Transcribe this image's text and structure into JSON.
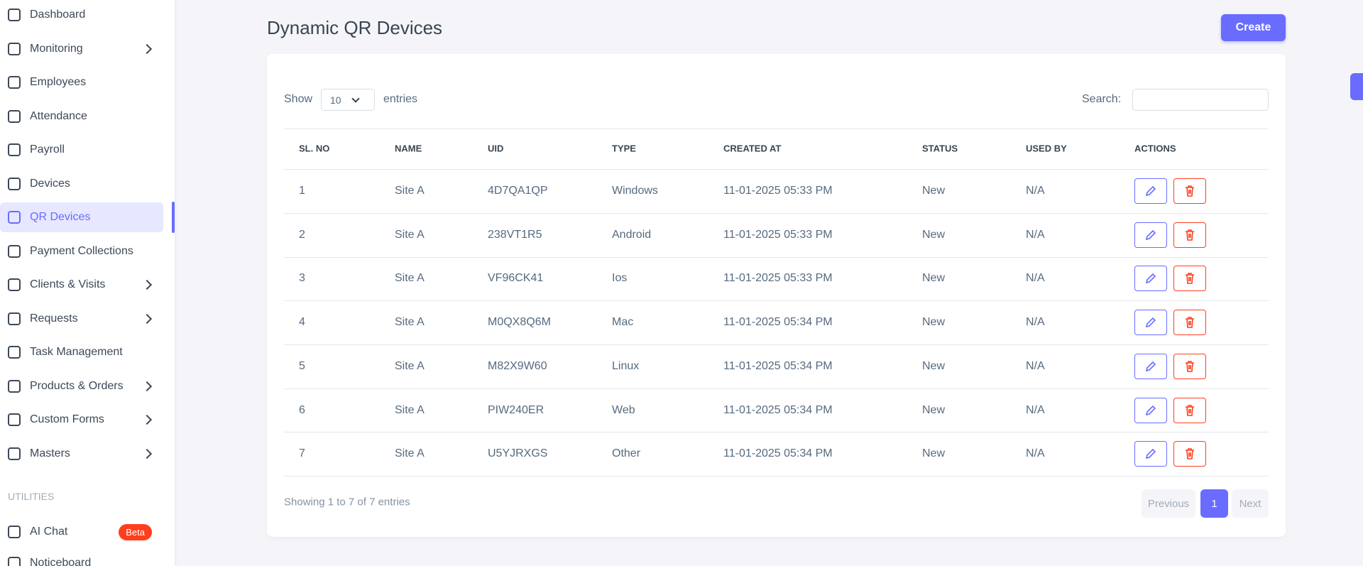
{
  "sidebar": {
    "items": [
      {
        "label": "Dashboard"
      },
      {
        "label": "Monitoring",
        "expandable": true
      },
      {
        "label": "Employees"
      },
      {
        "label": "Attendance"
      },
      {
        "label": "Payroll"
      },
      {
        "label": "Devices"
      },
      {
        "label": "QR Devices",
        "active": true
      },
      {
        "label": "Payment Collections"
      },
      {
        "label": "Clients & Visits",
        "expandable": true
      },
      {
        "label": "Requests",
        "expandable": true
      },
      {
        "label": "Task Management"
      },
      {
        "label": "Products & Orders",
        "expandable": true
      },
      {
        "label": "Custom Forms",
        "expandable": true
      },
      {
        "label": "Masters",
        "expandable": true
      }
    ],
    "section": "UTILITIES",
    "utility_items": [
      {
        "label": "AI Chat",
        "badge": "Beta"
      },
      {
        "label": "Noticeboard"
      }
    ]
  },
  "header": {
    "title": "Dynamic QR Devices",
    "create_button": "Create"
  },
  "table_controls": {
    "show": "Show",
    "page_size": "10",
    "entries": "entries",
    "search": "Search:"
  },
  "table": {
    "columns": [
      "SL. NO",
      "NAME",
      "UID",
      "TYPE",
      "CREATED AT",
      "STATUS",
      "USED BY",
      "ACTIONS"
    ],
    "rows": [
      [
        "1",
        "Site A",
        "4D7QA1QP",
        "Windows",
        "11-01-2025 05:33 PM",
        "New",
        "N/A"
      ],
      [
        "2",
        "Site A",
        "238VT1R5",
        "Android",
        "11-01-2025 05:33 PM",
        "New",
        "N/A"
      ],
      [
        "3",
        "Site A",
        "VF96CK41",
        "Ios",
        "11-01-2025 05:33 PM",
        "New",
        "N/A"
      ],
      [
        "4",
        "Site A",
        "M0QX8Q6M",
        "Mac",
        "11-01-2025 05:34 PM",
        "New",
        "N/A"
      ],
      [
        "5",
        "Site A",
        "M82X9W60",
        "Linux",
        "11-01-2025 05:34 PM",
        "New",
        "N/A"
      ],
      [
        "6",
        "Site A",
        "PIW240ER",
        "Web",
        "11-01-2025 05:34 PM",
        "New",
        "N/A"
      ],
      [
        "7",
        "Site A",
        "U5YJRXGS",
        "Other",
        "11-01-2025 05:34 PM",
        "New",
        "N/A"
      ]
    ]
  },
  "footer": {
    "info": "Showing 1 to 7 of 7 entries",
    "previous": "Previous",
    "page": "1",
    "next": "Next"
  }
}
